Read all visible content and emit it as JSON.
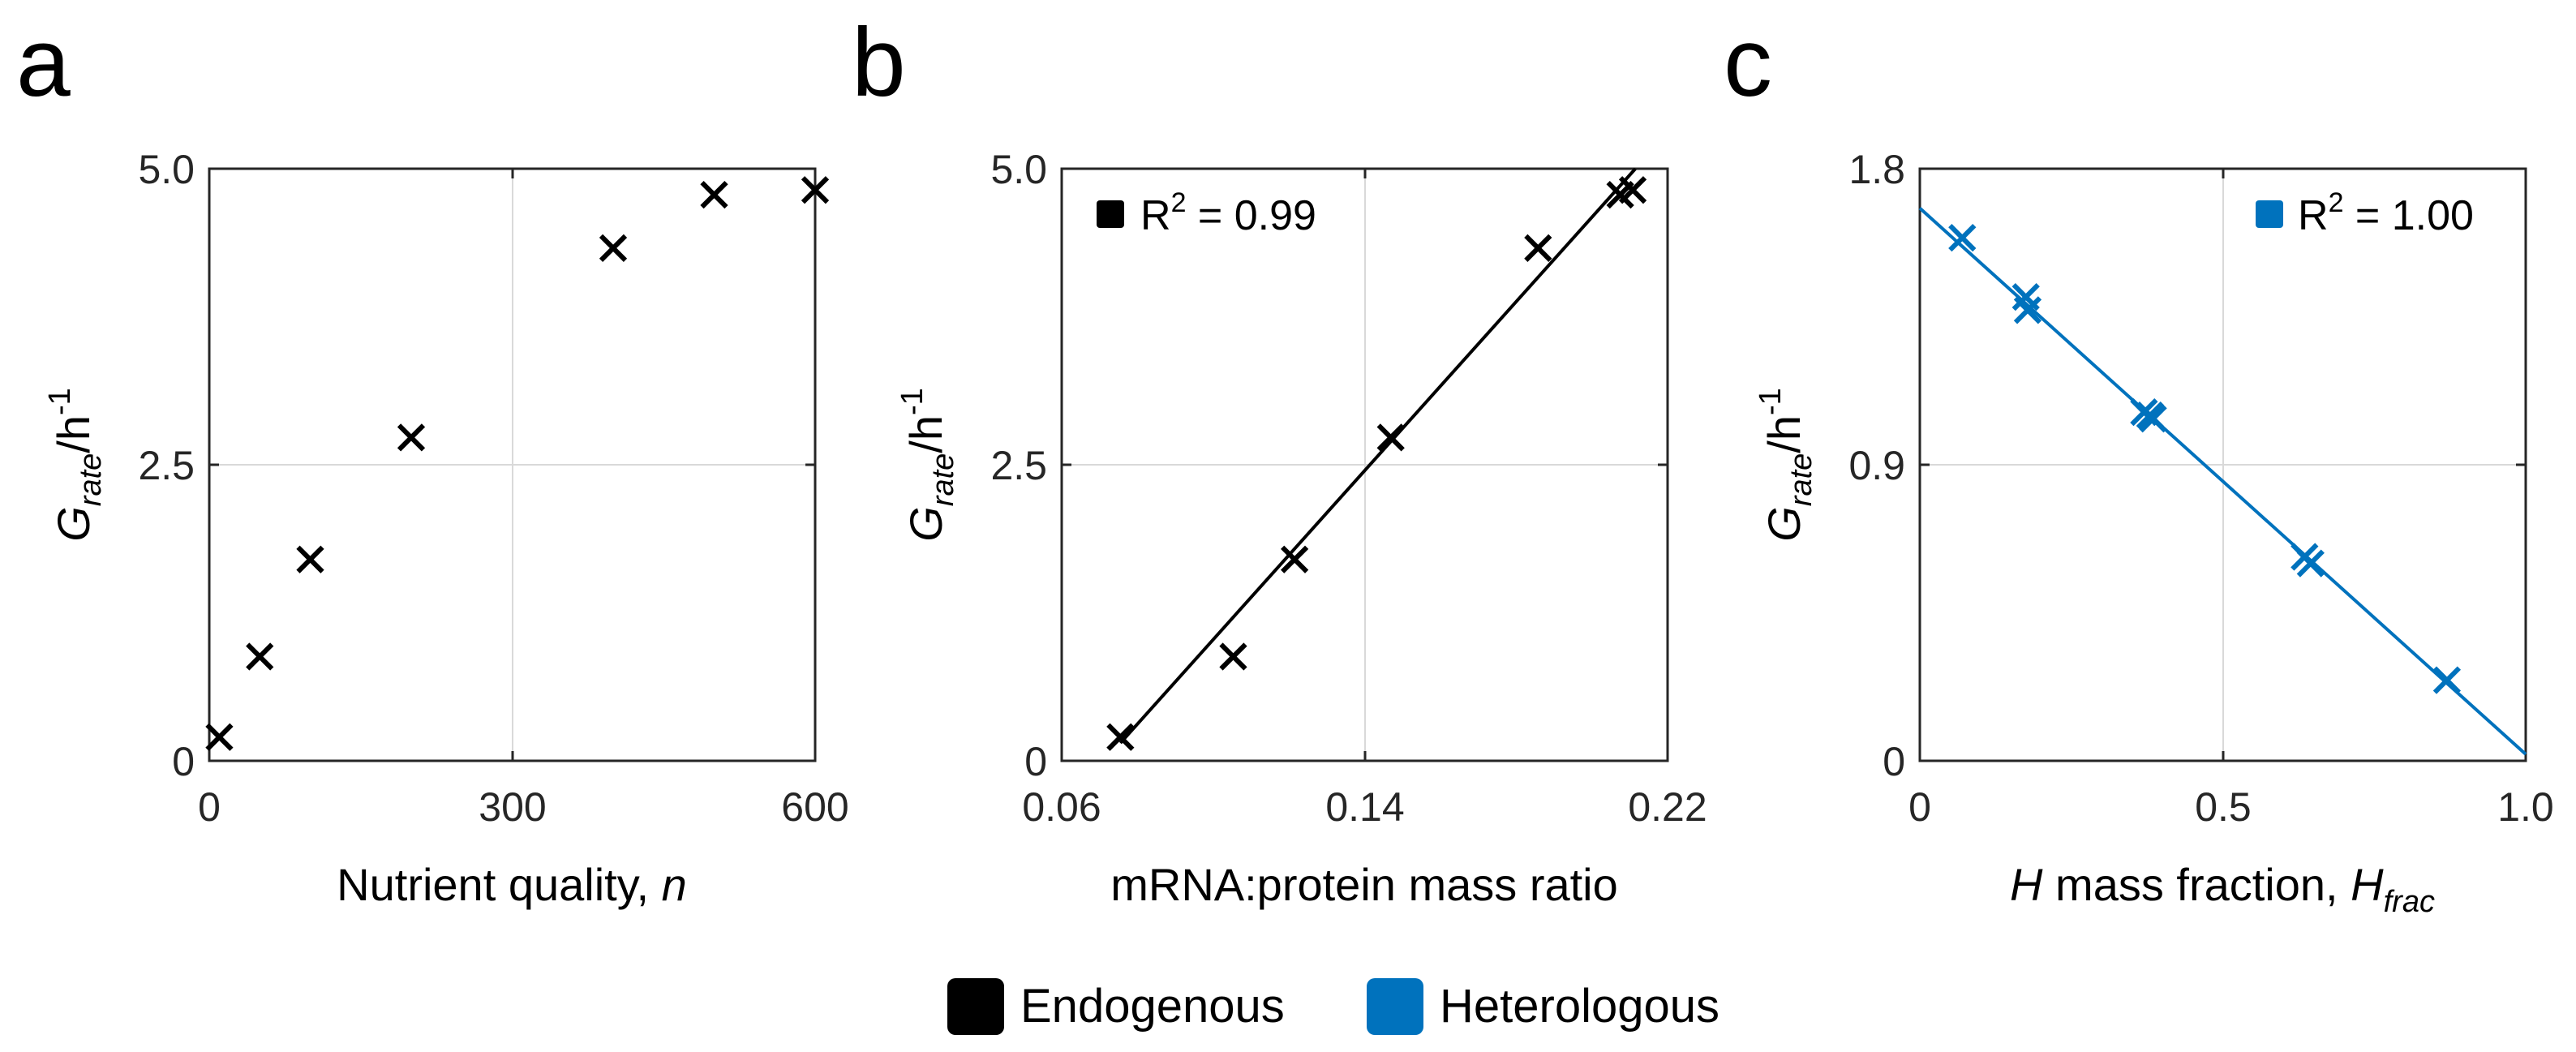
{
  "colors": {
    "endogenous": "#000000",
    "heterologous": "#0072BD",
    "grid": "#d9d9d9",
    "axis": "#262626"
  },
  "panels": {
    "a": {
      "label": "a"
    },
    "b": {
      "label": "b"
    },
    "c": {
      "label": "c"
    }
  },
  "legend": {
    "items": [
      "Endogenous",
      "Heterologous"
    ]
  },
  "chart_data": [
    {
      "id": "a",
      "type": "scatter",
      "title": "",
      "xlabel": "Nutrient quality, ",
      "xlabel_var": "n",
      "ylabel_main": "G",
      "ylabel_sub": "rate",
      "ylabel_unit": "/h",
      "ylabel_exp": "-1",
      "xlim": [
        0,
        600
      ],
      "ylim": [
        0,
        5
      ],
      "xticks": [
        0,
        300,
        600
      ],
      "yticks": [
        0,
        2.5,
        5
      ],
      "xtick_labels": [
        "0",
        "300",
        "600"
      ],
      "ytick_labels": [
        "0",
        "2.5",
        "5.0"
      ],
      "grid": true,
      "series": [
        {
          "name": "Endogenous",
          "marker": "x",
          "x": [
            10,
            50,
            100,
            200,
            400,
            500,
            600
          ],
          "y": [
            0.2,
            0.88,
            1.7,
            2.73,
            4.33,
            4.78,
            4.82
          ]
        }
      ]
    },
    {
      "id": "b",
      "type": "scatter",
      "title": "",
      "xlabel": "mRNA:protein mass ratio",
      "ylabel_main": "G",
      "ylabel_sub": "rate",
      "ylabel_unit": "/h",
      "ylabel_exp": "-1",
      "xlim": [
        0.06,
        0.22
      ],
      "ylim": [
        0,
        5
      ],
      "xticks": [
        0.06,
        0.14,
        0.22
      ],
      "yticks": [
        0,
        2.5,
        5
      ],
      "xtick_labels": [
        "0.06",
        "0.14",
        "0.22"
      ],
      "ytick_labels": [
        "0",
        "2.5",
        "5.0"
      ],
      "grid": true,
      "annotation": {
        "prefix": "R",
        "sup": "2",
        "suffix": " = 0.99"
      },
      "legend_position": "top-left",
      "series": [
        {
          "name": "Endogenous",
          "marker": "x",
          "x": [
            0.0755,
            0.1053,
            0.1215,
            0.1469,
            0.1858,
            0.2075,
            0.2108
          ],
          "y": [
            0.2,
            0.88,
            1.7,
            2.73,
            4.33,
            4.78,
            4.82
          ]
        }
      ],
      "fit_line": {
        "x": [
          0.0755,
          0.2115
        ],
        "y": [
          0.15,
          5.0
        ]
      }
    },
    {
      "id": "c",
      "type": "scatter",
      "title": "",
      "xlabel_var": "H",
      "xlabel": " mass fraction, ",
      "xlabel_var2": "H",
      "xlabel_sub": "frac",
      "ylabel_main": "G",
      "ylabel_sub": "rate",
      "ylabel_unit": "/h",
      "ylabel_exp": "-1",
      "xlim": [
        0,
        1
      ],
      "ylim": [
        0,
        1.8
      ],
      "xticks": [
        0,
        0.5,
        1
      ],
      "yticks": [
        0,
        0.9,
        1.8
      ],
      "xtick_labels": [
        "0",
        "0.5",
        "1.0"
      ],
      "ytick_labels": [
        "0",
        "0.9",
        "1.8"
      ],
      "grid": true,
      "annotation": {
        "prefix": "R",
        "sup": "2",
        "suffix": " = 1.00"
      },
      "legend_position": "top-right",
      "series": [
        {
          "name": "Heterologous",
          "marker": "x",
          "x": [
            0.07,
            0.175,
            0.178,
            0.37,
            0.38,
            0.385,
            0.635,
            0.645,
            0.87
          ],
          "y": [
            1.59,
            1.41,
            1.37,
            1.06,
            1.05,
            1.04,
            0.62,
            0.6,
            0.245
          ]
        }
      ],
      "fit_line": {
        "x": [
          0,
          1
        ],
        "y": [
          1.68,
          0.02
        ]
      }
    }
  ]
}
